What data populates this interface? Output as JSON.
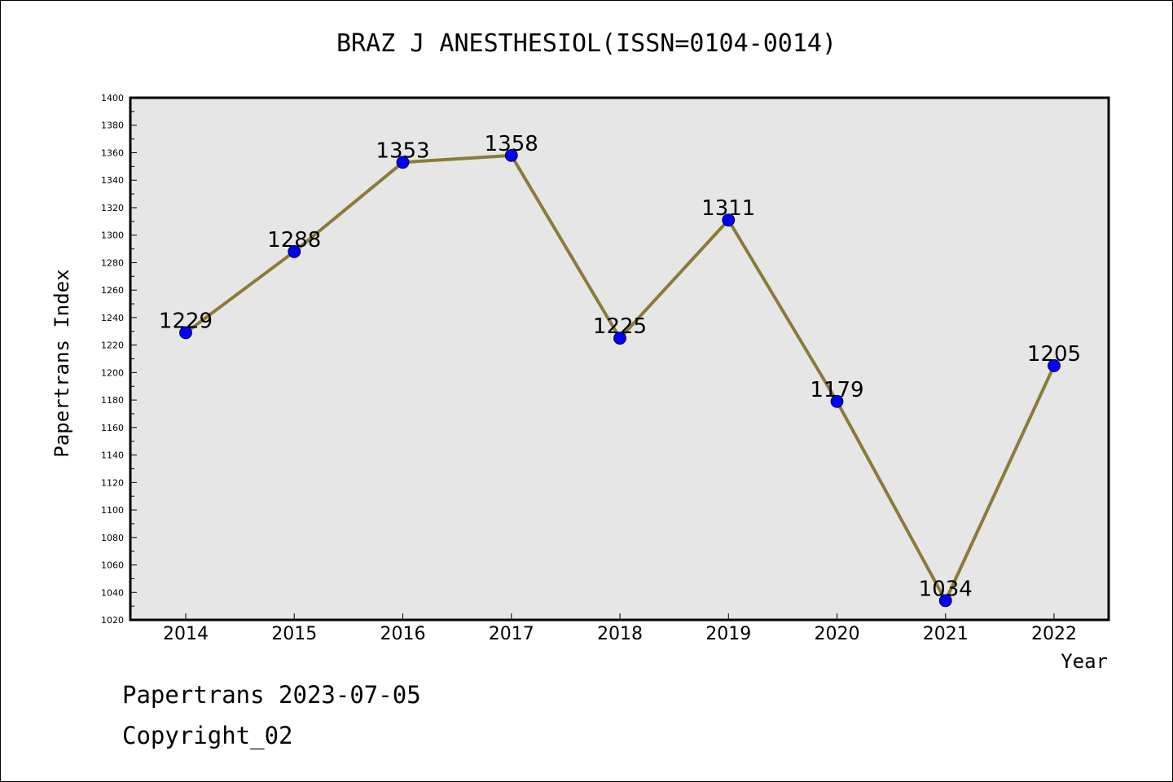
{
  "chart_data": {
    "type": "line",
    "title": "BRAZ J ANESTHESIOL(ISSN=0104-0014)",
    "xlabel": "Year",
    "ylabel": "Papertrans Index",
    "categories": [
      "2014",
      "2015",
      "2016",
      "2017",
      "2018",
      "2019",
      "2020",
      "2021",
      "2022"
    ],
    "series": [
      {
        "values": [
          1229,
          1288,
          1353,
          1358,
          1225,
          1311,
          1179,
          1034,
          1205
        ]
      }
    ],
    "ylim": [
      1020,
      1400
    ],
    "yticks": [
      1020,
      1040,
      1060,
      1080,
      1100,
      1120,
      1140,
      1160,
      1180,
      1200,
      1220,
      1240,
      1260,
      1280,
      1300,
      1320,
      1340,
      1360,
      1380,
      1400
    ],
    "grid": false,
    "colors": {
      "line": "#8b7b3a",
      "marker": "#0000ff",
      "plot_background": "#e6e6e6"
    }
  },
  "footer": {
    "line1": "Papertrans 2023-07-05",
    "line2": "Copyright_02"
  }
}
